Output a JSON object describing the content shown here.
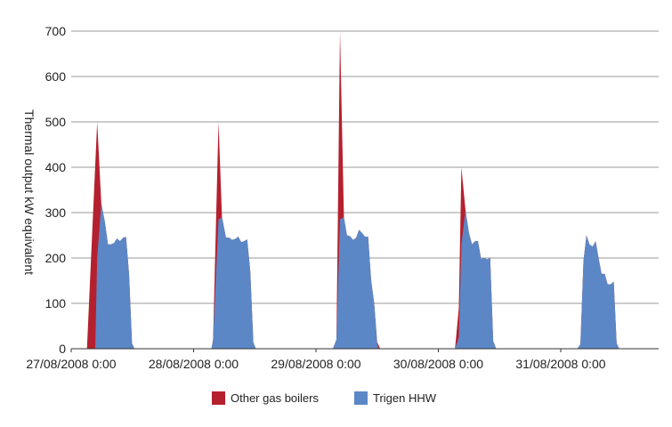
{
  "chart_data": {
    "type": "area",
    "ylabel": "Thermal output kW equivalent",
    "xlabel": "",
    "ylim": [
      0,
      700
    ],
    "y_ticks": [
      0,
      100,
      200,
      300,
      400,
      500,
      600,
      700
    ],
    "x_ticks": [
      "27/08/2008 0:00",
      "28/08/2008 0:00",
      "29/08/2008 0:00",
      "30/08/2008 0:00",
      "31/08/2008 0:00"
    ],
    "x_range_days": [
      0,
      5
    ],
    "grid": true,
    "legend_position": "bottom-center",
    "stacked": true,
    "series": [
      {
        "name": "Other gas boilers",
        "color": "#b5202e",
        "points": [
          [
            0.129,
            0
          ],
          [
            0.212,
            500
          ],
          [
            0.246,
            320
          ],
          [
            0.275,
            280
          ],
          [
            0.3,
            230
          ],
          [
            0.325,
            230
          ],
          [
            0.35,
            233
          ],
          [
            0.374,
            243
          ],
          [
            0.399,
            237
          ],
          [
            0.424,
            245
          ],
          [
            0.448,
            246
          ],
          [
            0.473,
            165
          ],
          [
            0.497,
            12
          ],
          [
            0.517,
            0
          ],
          [
            1.146,
            0
          ],
          [
            1.159,
            20
          ],
          [
            1.204,
            500
          ],
          [
            1.232,
            290
          ],
          [
            1.265,
            245
          ],
          [
            1.29,
            245
          ],
          [
            1.315,
            240
          ],
          [
            1.34,
            242
          ],
          [
            1.364,
            247
          ],
          [
            1.389,
            235
          ],
          [
            1.414,
            237
          ],
          [
            1.438,
            241
          ],
          [
            1.463,
            170
          ],
          [
            1.488,
            14
          ],
          [
            1.508,
            0
          ],
          [
            2.138,
            0
          ],
          [
            2.167,
            20
          ],
          [
            2.196,
            700
          ],
          [
            2.228,
            290
          ],
          [
            2.253,
            250
          ],
          [
            2.278,
            248
          ],
          [
            2.303,
            240
          ],
          [
            2.327,
            244
          ],
          [
            2.352,
            262
          ],
          [
            2.377,
            255
          ],
          [
            2.401,
            247
          ],
          [
            2.426,
            247
          ],
          [
            2.451,
            150
          ],
          [
            2.476,
            100
          ],
          [
            2.5,
            14
          ],
          [
            2.525,
            0
          ],
          [
            3.136,
            0
          ],
          [
            3.167,
            90
          ],
          [
            3.188,
            400
          ],
          [
            3.222,
            305
          ],
          [
            3.25,
            255
          ],
          [
            3.275,
            230
          ],
          [
            3.3,
            237
          ],
          [
            3.324,
            237
          ],
          [
            3.349,
            198
          ],
          [
            3.374,
            200
          ],
          [
            3.398,
            197
          ],
          [
            3.423,
            200
          ],
          [
            3.448,
            17
          ],
          [
            3.472,
            0
          ],
          [
            4.136,
            0
          ],
          [
            4.161,
            10
          ],
          [
            4.186,
            195
          ],
          [
            4.21,
            250
          ],
          [
            4.235,
            230
          ],
          [
            4.26,
            225
          ],
          [
            4.285,
            237
          ],
          [
            4.309,
            200
          ],
          [
            4.334,
            165
          ],
          [
            4.359,
            165
          ],
          [
            4.383,
            142
          ],
          [
            4.408,
            142
          ],
          [
            4.433,
            148
          ],
          [
            4.457,
            12
          ],
          [
            4.478,
            0
          ]
        ]
      },
      {
        "name": "Trigen HHW",
        "color": "#5b87c6",
        "points": [
          [
            0.196,
            0
          ],
          [
            0.212,
            200
          ],
          [
            0.246,
            320
          ],
          [
            0.275,
            280
          ],
          [
            0.3,
            230
          ],
          [
            0.325,
            230
          ],
          [
            0.35,
            233
          ],
          [
            0.374,
            243
          ],
          [
            0.399,
            237
          ],
          [
            0.424,
            245
          ],
          [
            0.448,
            246
          ],
          [
            0.473,
            165
          ],
          [
            0.497,
            12
          ],
          [
            0.517,
            0
          ],
          [
            1.146,
            0
          ],
          [
            1.159,
            20
          ],
          [
            1.204,
            285
          ],
          [
            1.232,
            290
          ],
          [
            1.265,
            245
          ],
          [
            1.29,
            245
          ],
          [
            1.315,
            240
          ],
          [
            1.34,
            242
          ],
          [
            1.364,
            247
          ],
          [
            1.389,
            235
          ],
          [
            1.414,
            237
          ],
          [
            1.438,
            241
          ],
          [
            1.463,
            170
          ],
          [
            1.488,
            14
          ],
          [
            1.508,
            0
          ],
          [
            2.138,
            0
          ],
          [
            2.167,
            20
          ],
          [
            2.196,
            285
          ],
          [
            2.228,
            290
          ],
          [
            2.253,
            250
          ],
          [
            2.278,
            248
          ],
          [
            2.303,
            240
          ],
          [
            2.327,
            244
          ],
          [
            2.352,
            262
          ],
          [
            2.377,
            255
          ],
          [
            2.401,
            247
          ],
          [
            2.426,
            247
          ],
          [
            2.451,
            150
          ],
          [
            2.476,
            100
          ],
          [
            2.5,
            10
          ],
          [
            2.512,
            0
          ],
          [
            3.136,
            0
          ],
          [
            3.167,
            25
          ],
          [
            3.188,
            230
          ],
          [
            3.222,
            305
          ],
          [
            3.25,
            255
          ],
          [
            3.275,
            230
          ],
          [
            3.3,
            237
          ],
          [
            3.324,
            237
          ],
          [
            3.349,
            198
          ],
          [
            3.374,
            200
          ],
          [
            3.398,
            197
          ],
          [
            3.423,
            200
          ],
          [
            3.448,
            17
          ],
          [
            3.472,
            0
          ],
          [
            4.136,
            0
          ],
          [
            4.161,
            10
          ],
          [
            4.186,
            195
          ],
          [
            4.21,
            250
          ],
          [
            4.235,
            230
          ],
          [
            4.26,
            225
          ],
          [
            4.285,
            237
          ],
          [
            4.309,
            200
          ],
          [
            4.334,
            165
          ],
          [
            4.359,
            165
          ],
          [
            4.383,
            142
          ],
          [
            4.408,
            142
          ],
          [
            4.433,
            148
          ],
          [
            4.457,
            12
          ],
          [
            4.478,
            0
          ]
        ]
      }
    ]
  }
}
